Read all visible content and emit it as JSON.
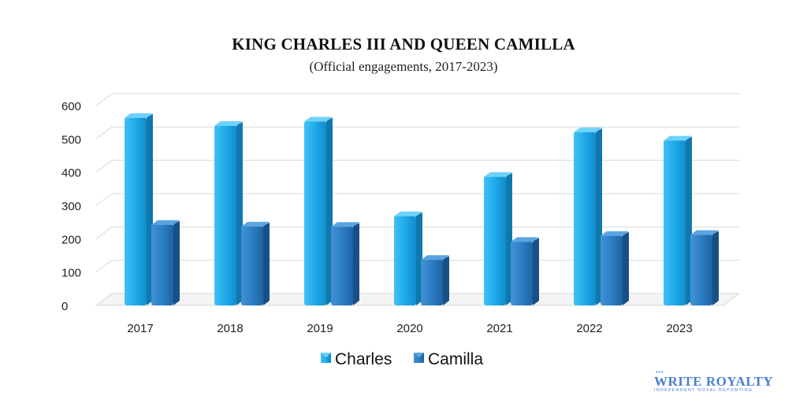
{
  "chart_data": {
    "type": "bar",
    "title": "KING CHARLES III AND QUEEN CAMILLA",
    "subtitle": "(Official engagements, 2017-2023)",
    "categories": [
      "2017",
      "2018",
      "2019",
      "2020",
      "2021",
      "2022",
      "2023"
    ],
    "series": [
      {
        "name": "Charles",
        "values": [
          546,
          522,
          535,
          251,
          369,
          503,
          478
        ],
        "color": "#1aa5e6"
      },
      {
        "name": "Camilla",
        "values": [
          225,
          220,
          219,
          120,
          174,
          192,
          195
        ],
        "color": "#2f80c8"
      }
    ],
    "yticks": [
      0,
      100,
      200,
      300,
      400,
      500,
      600
    ],
    "ylim": [
      0,
      600
    ],
    "grid": true,
    "legend_position": "bottom-center",
    "style": "3d-columns"
  },
  "logo": {
    "main_bold": "WRITE ROYALTY",
    "tagline": "INDEPENDENT ROYAL REPORTING",
    "crown": "•••"
  }
}
